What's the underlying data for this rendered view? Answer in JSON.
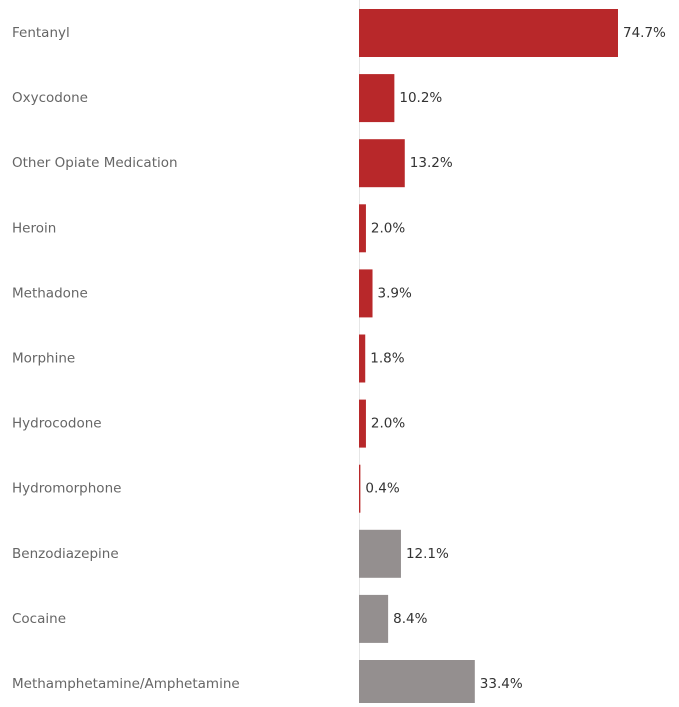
{
  "chart_data": {
    "type": "bar",
    "orientation": "horizontal",
    "categories": [
      "Fentanyl",
      "Oxycodone",
      "Other Opiate Medication",
      "Heroin",
      "Methadone",
      "Morphine",
      "Hydrocodone",
      "Hydromorphone",
      "Benzodiazepine",
      "Cocaine",
      "Methamphetamine/Amphetamine"
    ],
    "values": [
      74.7,
      10.2,
      13.2,
      2.0,
      3.9,
      1.8,
      2.0,
      0.4,
      12.1,
      8.4,
      33.4
    ],
    "value_labels": [
      "74.7%",
      "10.2%",
      "13.2%",
      "2.0%",
      "3.9%",
      "1.8%",
      "2.0%",
      "0.4%",
      "12.1%",
      "8.4%",
      "33.4%"
    ],
    "colors": [
      "#b8282a",
      "#b8282a",
      "#b8282a",
      "#b8282a",
      "#b8282a",
      "#b8282a",
      "#b8282a",
      "#b8282a",
      "#948f8f",
      "#948f8f",
      "#948f8f"
    ]
  }
}
